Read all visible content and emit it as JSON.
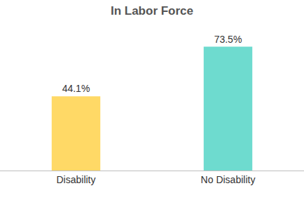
{
  "chart_data": {
    "type": "bar",
    "title": "In Labor Force",
    "categories": [
      "Disability",
      "No Disability"
    ],
    "values": [
      44.1,
      73.5
    ],
    "value_labels": [
      "44.1%",
      "73.5%"
    ],
    "colors": [
      "#FFD966",
      "#6EDBCF"
    ],
    "ylim": [
      0,
      85
    ],
    "data_labels": true,
    "tick_labels": "x",
    "grid": false
  }
}
